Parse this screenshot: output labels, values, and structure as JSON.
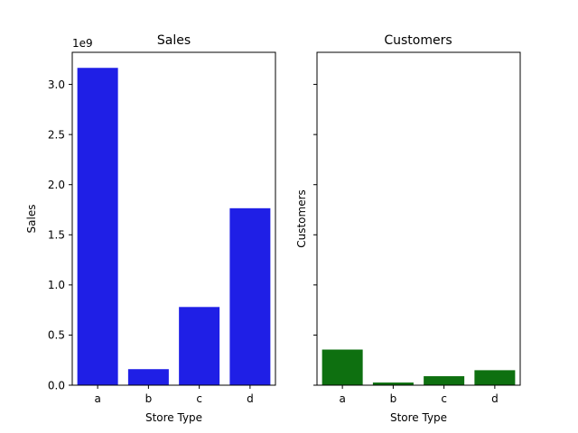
{
  "chart_data": [
    {
      "type": "bar",
      "title": "Sales",
      "xlabel": "Store Type",
      "ylabel": "Sales",
      "categories": [
        "a",
        "b",
        "c",
        "d"
      ],
      "values": [
        3165000000,
        160000000,
        780000000,
        1765000000
      ],
      "ylim": [
        0,
        3320000000
      ],
      "yticks": [
        0,
        500000000,
        1000000000,
        1500000000,
        2000000000,
        2500000000,
        3000000000
      ],
      "ytick_labels": [
        "0.0",
        "0.5",
        "1.0",
        "1.5",
        "2.0",
        "2.5",
        "3.0"
      ],
      "offset_label": "1e9",
      "color": "#1f1fe6",
      "grid": false
    },
    {
      "type": "bar",
      "title": "Customers",
      "xlabel": "Store Type",
      "ylabel": "Customers",
      "categories": [
        "a",
        "b",
        "c",
        "d"
      ],
      "values": [
        0.107,
        0.008,
        0.027,
        0.045
      ],
      "ylim": [
        0,
        1
      ],
      "ytick_labels_shown": false,
      "sharey": true,
      "color": "#0e7010",
      "grid": false
    }
  ]
}
